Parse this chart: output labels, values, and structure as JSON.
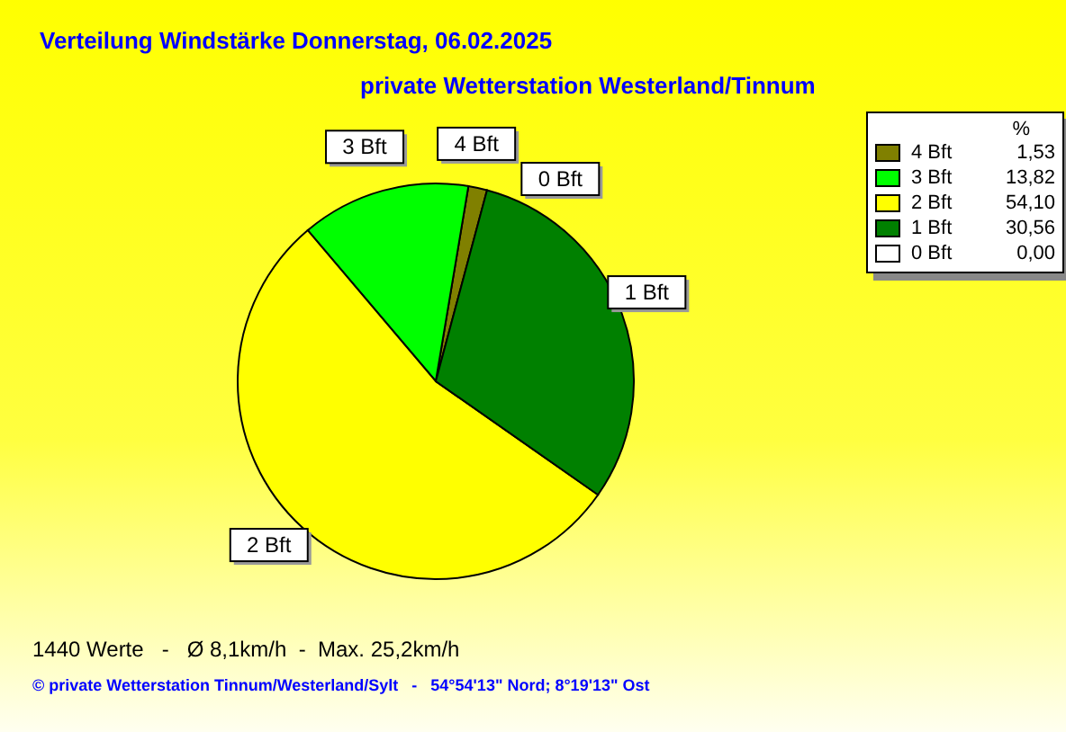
{
  "chart_data": {
    "type": "pie",
    "title": "Verteilung Windstärke  Donnerstag, 06.02.2025",
    "subtitle": "private Wetterstation Westerland/Tinnum",
    "categories": [
      "4 Bft",
      "3 Bft",
      "2 Bft",
      "1 Bft",
      "0 Bft"
    ],
    "values": [
      1.53,
      13.82,
      54.1,
      30.56,
      0.0
    ],
    "value_labels": [
      "1,53",
      "13,82",
      "54,10",
      "30,56",
      "0,00"
    ],
    "colors": [
      "#808000",
      "#00ff00",
      "#ffff00",
      "#008000",
      "#ffffff"
    ],
    "legend": "top right",
    "legend_title": "%",
    "annotations": [
      "1440 Werte   -   Ø 8,1km/h  -  Max. 25,2km/h",
      "© private Wetterstation Tinnum/Westerland/Sylt   -   54°54'13\" Nord; 8°19'13\" Ost"
    ]
  }
}
